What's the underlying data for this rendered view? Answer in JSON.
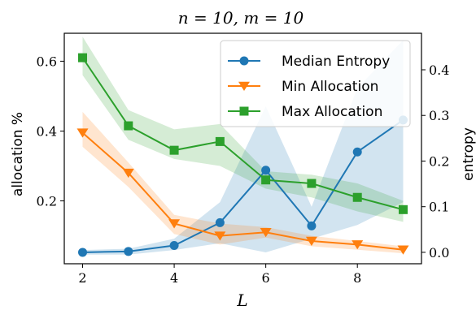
{
  "chart_data": {
    "type": "line",
    "title": "n = 10, m = 10",
    "xlabel": "L",
    "ylabel_left": "allocation %",
    "ylabel_right": "entropy",
    "x": [
      2,
      3,
      4,
      5,
      6,
      7,
      8,
      9
    ],
    "xlim": [
      1.6,
      9.4
    ],
    "xticks": [
      2,
      4,
      6,
      8
    ],
    "ylim_left": [
      0.02,
      0.68
    ],
    "yticks_left": [
      "0.2",
      "0.4",
      "0.6"
    ],
    "ylim_right": [
      -0.025,
      0.48
    ],
    "yticks_right": [
      "0.0",
      "0.1",
      "0.2",
      "0.3",
      "0.4"
    ],
    "grid": false,
    "legend_position": "top-right",
    "series": [
      {
        "name": "Median Entropy",
        "axis": "right",
        "color": "#1f77b4",
        "marker": "circle",
        "values": [
          0.0,
          0.002,
          0.015,
          0.065,
          0.18,
          0.058,
          0.22,
          0.29
        ],
        "band_low": [
          -0.005,
          -0.005,
          0.005,
          0.02,
          0.0,
          0.03,
          0.06,
          0.11
        ],
        "band_high": [
          0.005,
          0.008,
          0.03,
          0.11,
          0.32,
          0.1,
          0.36,
          0.465
        ]
      },
      {
        "name": "Min Allocation",
        "axis": "left",
        "color": "#ff7f0e",
        "marker": "triangle-down",
        "values": [
          0.395,
          0.28,
          0.135,
          0.1,
          0.11,
          0.085,
          0.075,
          0.06
        ],
        "band_low": [
          0.355,
          0.24,
          0.105,
          0.075,
          0.095,
          0.07,
          0.06,
          0.05
        ],
        "band_high": [
          0.455,
          0.31,
          0.16,
          0.135,
          0.125,
          0.1,
          0.085,
          0.07
        ]
      },
      {
        "name": "Max Allocation",
        "axis": "left",
        "color": "#2ca02c",
        "marker": "square",
        "values": [
          0.61,
          0.415,
          0.345,
          0.37,
          0.26,
          0.25,
          0.21,
          0.175
        ],
        "band_low": [
          0.56,
          0.375,
          0.32,
          0.3,
          0.235,
          0.21,
          0.17,
          0.14
        ],
        "band_high": [
          0.67,
          0.46,
          0.405,
          0.42,
          0.285,
          0.275,
          0.25,
          0.2
        ]
      }
    ]
  }
}
